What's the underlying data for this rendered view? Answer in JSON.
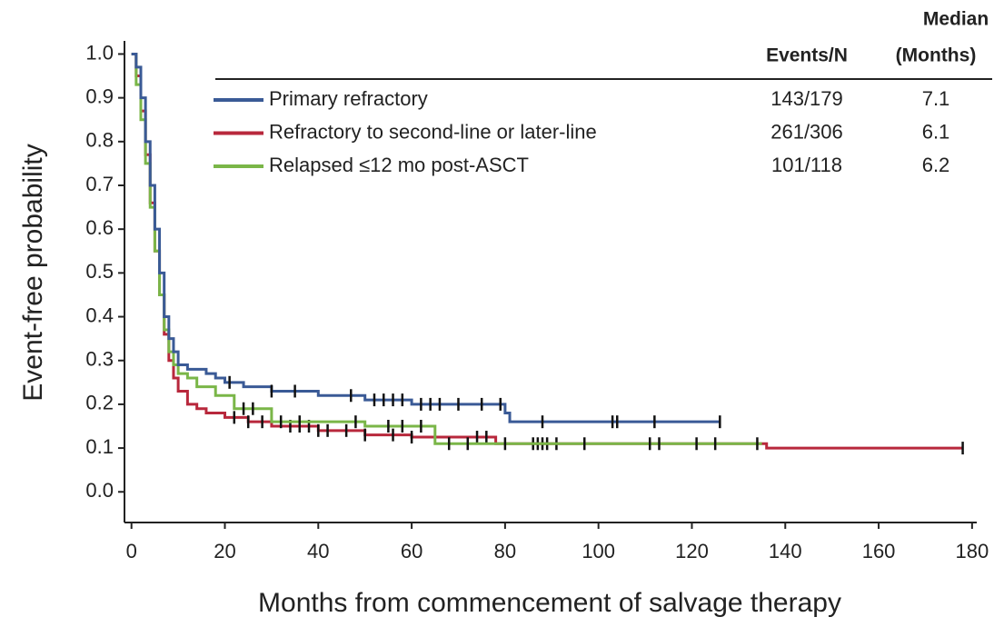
{
  "chart_data": {
    "type": "line",
    "step": true,
    "xlabel": "Months from commencement of salvage therapy",
    "ylabel": "Event-free probability",
    "xlim": [
      -1.5,
      181
    ],
    "ylim": [
      -0.07,
      1.03
    ],
    "xticks": [
      0,
      20,
      40,
      60,
      80,
      100,
      120,
      140,
      160,
      180
    ],
    "yticks": [
      {
        "value": 0,
        "label": "0.0"
      },
      0.1,
      0.2,
      0.3,
      0.4,
      0.5,
      0.6,
      0.7,
      0.8,
      0.9,
      {
        "value": 1,
        "label": "1.0"
      }
    ],
    "legend_headers": {
      "events": "Events/N",
      "median_top": "Median",
      "median": "(Months)"
    },
    "series": [
      {
        "name": "Primary refractory",
        "color": "#3a5a96",
        "events": "143/179",
        "median": 7.1,
        "x": [
          0,
          1,
          2,
          3,
          4,
          5,
          6,
          7,
          8,
          9,
          10,
          12,
          14,
          16,
          18,
          20,
          24,
          30,
          40,
          50,
          60,
          70,
          80,
          81,
          126
        ],
        "values": [
          1.0,
          0.97,
          0.9,
          0.8,
          0.7,
          0.6,
          0.5,
          0.4,
          0.35,
          0.32,
          0.29,
          0.28,
          0.28,
          0.27,
          0.26,
          0.25,
          0.24,
          0.23,
          0.22,
          0.21,
          0.2,
          0.2,
          0.18,
          0.16,
          0.16
        ],
        "censored": [
          21,
          30,
          35,
          47,
          52,
          54,
          56,
          58,
          62,
          64,
          66,
          70,
          75,
          79,
          88,
          103,
          104,
          112,
          126
        ]
      },
      {
        "name": "Refractory to second-line or later-line",
        "color": "#b8283c",
        "events": "261/306",
        "median": 6.1,
        "x": [
          0,
          1,
          2,
          3,
          4,
          5,
          6,
          7,
          8,
          9,
          10,
          12,
          14,
          16,
          20,
          25,
          30,
          40,
          50,
          60,
          78,
          136,
          178
        ],
        "values": [
          1.0,
          0.95,
          0.87,
          0.77,
          0.66,
          0.55,
          0.45,
          0.36,
          0.3,
          0.26,
          0.23,
          0.2,
          0.19,
          0.18,
          0.17,
          0.16,
          0.15,
          0.14,
          0.13,
          0.125,
          0.11,
          0.1,
          0.1
        ],
        "censored": [
          22,
          25,
          28,
          34,
          36,
          38,
          40,
          42,
          46,
          50,
          56,
          60,
          74,
          76,
          86,
          87,
          88,
          89,
          91,
          178
        ]
      },
      {
        "name": "Relapsed ≤12 mo post-ASCT",
        "color": "#7ab648",
        "events": "101/118",
        "median": 6.2,
        "x": [
          0,
          1,
          2,
          3,
          4,
          5,
          6,
          7,
          8,
          9,
          10,
          12,
          14,
          18,
          22,
          30,
          40,
          50,
          65,
          135
        ],
        "values": [
          1.0,
          0.93,
          0.85,
          0.75,
          0.65,
          0.55,
          0.45,
          0.37,
          0.32,
          0.29,
          0.27,
          0.26,
          0.24,
          0.22,
          0.19,
          0.16,
          0.16,
          0.15,
          0.11,
          0.11
        ],
        "censored": [
          24,
          26,
          32,
          36,
          48,
          55,
          58,
          62,
          68,
          72,
          80,
          97,
          111,
          113,
          121,
          125,
          134
        ]
      }
    ]
  }
}
